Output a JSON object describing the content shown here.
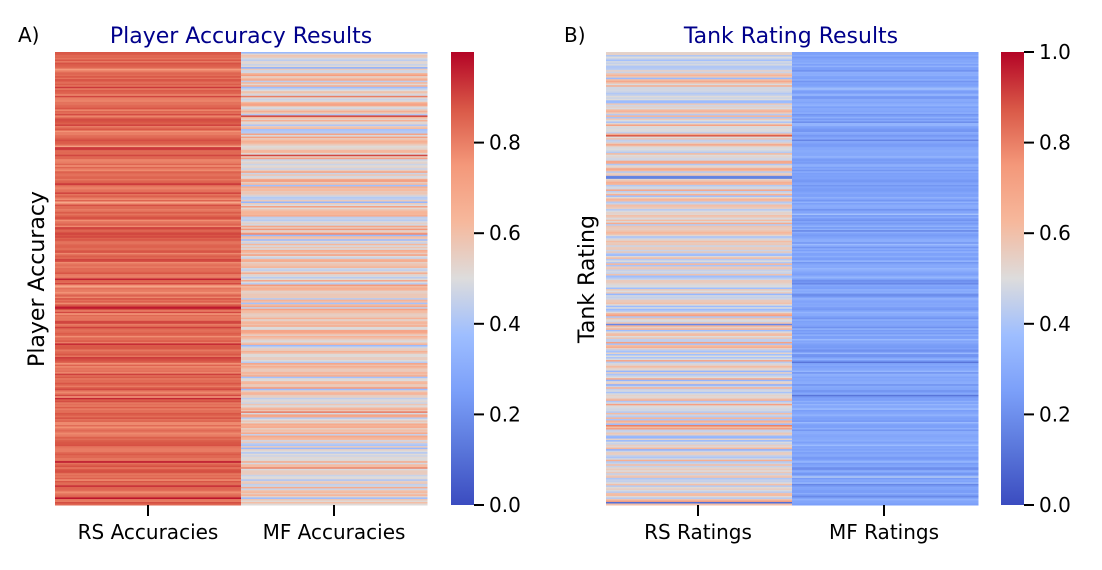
{
  "chart_data": [
    {
      "type": "heatmap",
      "panel": "A)",
      "title": "Player Accuracy Results",
      "ylabel": "Player Accuracy",
      "columns": [
        "RS Accuracies",
        "MF Accuracies"
      ],
      "colormap": "coolwarm",
      "color_range": [
        0,
        1
      ],
      "colorbar_ticks": [
        "0.0",
        "0.2",
        "0.4",
        "0.6",
        "0.8"
      ],
      "n_rows": 300,
      "column_profiles": [
        {
          "name": "RS Accuracies",
          "mean": 0.84,
          "spread": 0.05,
          "min": 0.55,
          "max": 0.98
        },
        {
          "name": "MF Accuracies",
          "mean": 0.55,
          "spread": 0.13,
          "min": 0.1,
          "max": 0.9
        }
      ]
    },
    {
      "type": "heatmap",
      "panel": "B)",
      "title": "Tank Rating Results",
      "ylabel": "Tank Rating",
      "columns": [
        "RS Ratings",
        "MF Ratings"
      ],
      "colormap": "coolwarm",
      "color_range": [
        0,
        1
      ],
      "colorbar_ticks": [
        "0.0",
        "0.2",
        "0.4",
        "0.6",
        "0.8",
        "1.0"
      ],
      "n_rows": 300,
      "column_profiles": [
        {
          "name": "RS Ratings",
          "mean": 0.52,
          "spread": 0.12,
          "min": 0.1,
          "max": 1.0
        },
        {
          "name": "MF Ratings",
          "mean": 0.27,
          "spread": 0.05,
          "min": 0.12,
          "max": 0.45
        }
      ]
    }
  ]
}
